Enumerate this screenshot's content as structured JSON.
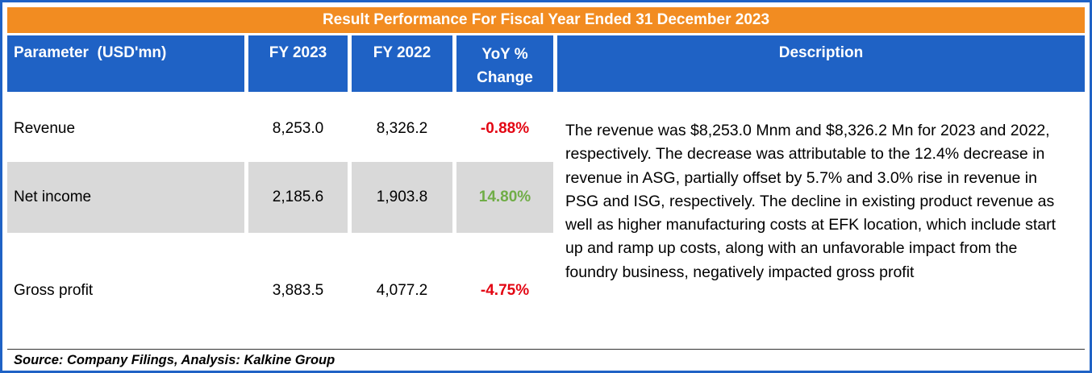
{
  "title": "Result Performance For Fiscal Year Ended 31 December 2023",
  "headers": {
    "parameter": "Parameter  (USD'mn)",
    "fy2023": "FY 2023",
    "fy2022": "FY 2022",
    "yoy": "YoY %\nChange",
    "description": "Description"
  },
  "rows": [
    {
      "parameter": "Revenue",
      "fy2023": "8,253.0",
      "fy2022": "8,326.2",
      "yoy": "-0.88%",
      "yoy_color": "#E30613"
    },
    {
      "parameter": "Net income",
      "fy2023": "2,185.6",
      "fy2022": "1,903.8",
      "yoy": "14.80%",
      "yoy_color": "#70AD47"
    },
    {
      "parameter": "Gross profit",
      "fy2023": "3,883.5",
      "fy2022": "4,077.2",
      "yoy": "-4.75%",
      "yoy_color": "#E30613"
    }
  ],
  "description": "The revenue was $8,253.0 Mnm and $8,326.2 Mn for 2023 and 2022, respectively. The decrease was attributable to the 12.4% decrease in revenue in ASG, partially offset by 5.7% and 3.0% rise in revenue in PSG and ISG, respectively. The decline in existing product revenue as well as higher manufacturing costs at EFK location, which include start up and ramp up costs, along with an unfavorable impact from the foundry business, negatively impacted gross profit",
  "footer": "Source: Company Filings, Analysis: Kalkine Group",
  "colors": {
    "title_bg": "#F28C21",
    "header_bg": "#1F62C5",
    "row_highlight": "#D9D9D9",
    "negative": "#E30613",
    "positive": "#70AD47",
    "border": "#1F62C5"
  },
  "chart_data": {
    "type": "table",
    "title": "Result Performance For Fiscal Year Ended 31 December 2023",
    "columns": [
      "Parameter (USD'mn)",
      "FY 2023",
      "FY 2022",
      "YoY % Change",
      "Description"
    ],
    "rows": [
      {
        "parameter": "Revenue",
        "fy_2023": 8253.0,
        "fy_2022": 8326.2,
        "yoy_pct_change": -0.88
      },
      {
        "parameter": "Net income",
        "fy_2023": 2185.6,
        "fy_2022": 1903.8,
        "yoy_pct_change": 14.8
      },
      {
        "parameter": "Gross profit",
        "fy_2023": 3883.5,
        "fy_2022": 4077.2,
        "yoy_pct_change": -4.75
      }
    ],
    "highlighted_row": "Net income",
    "source_note": "Source: Company Filings, Analysis: Kalkine Group",
    "legend_position": "none",
    "grid": false
  }
}
